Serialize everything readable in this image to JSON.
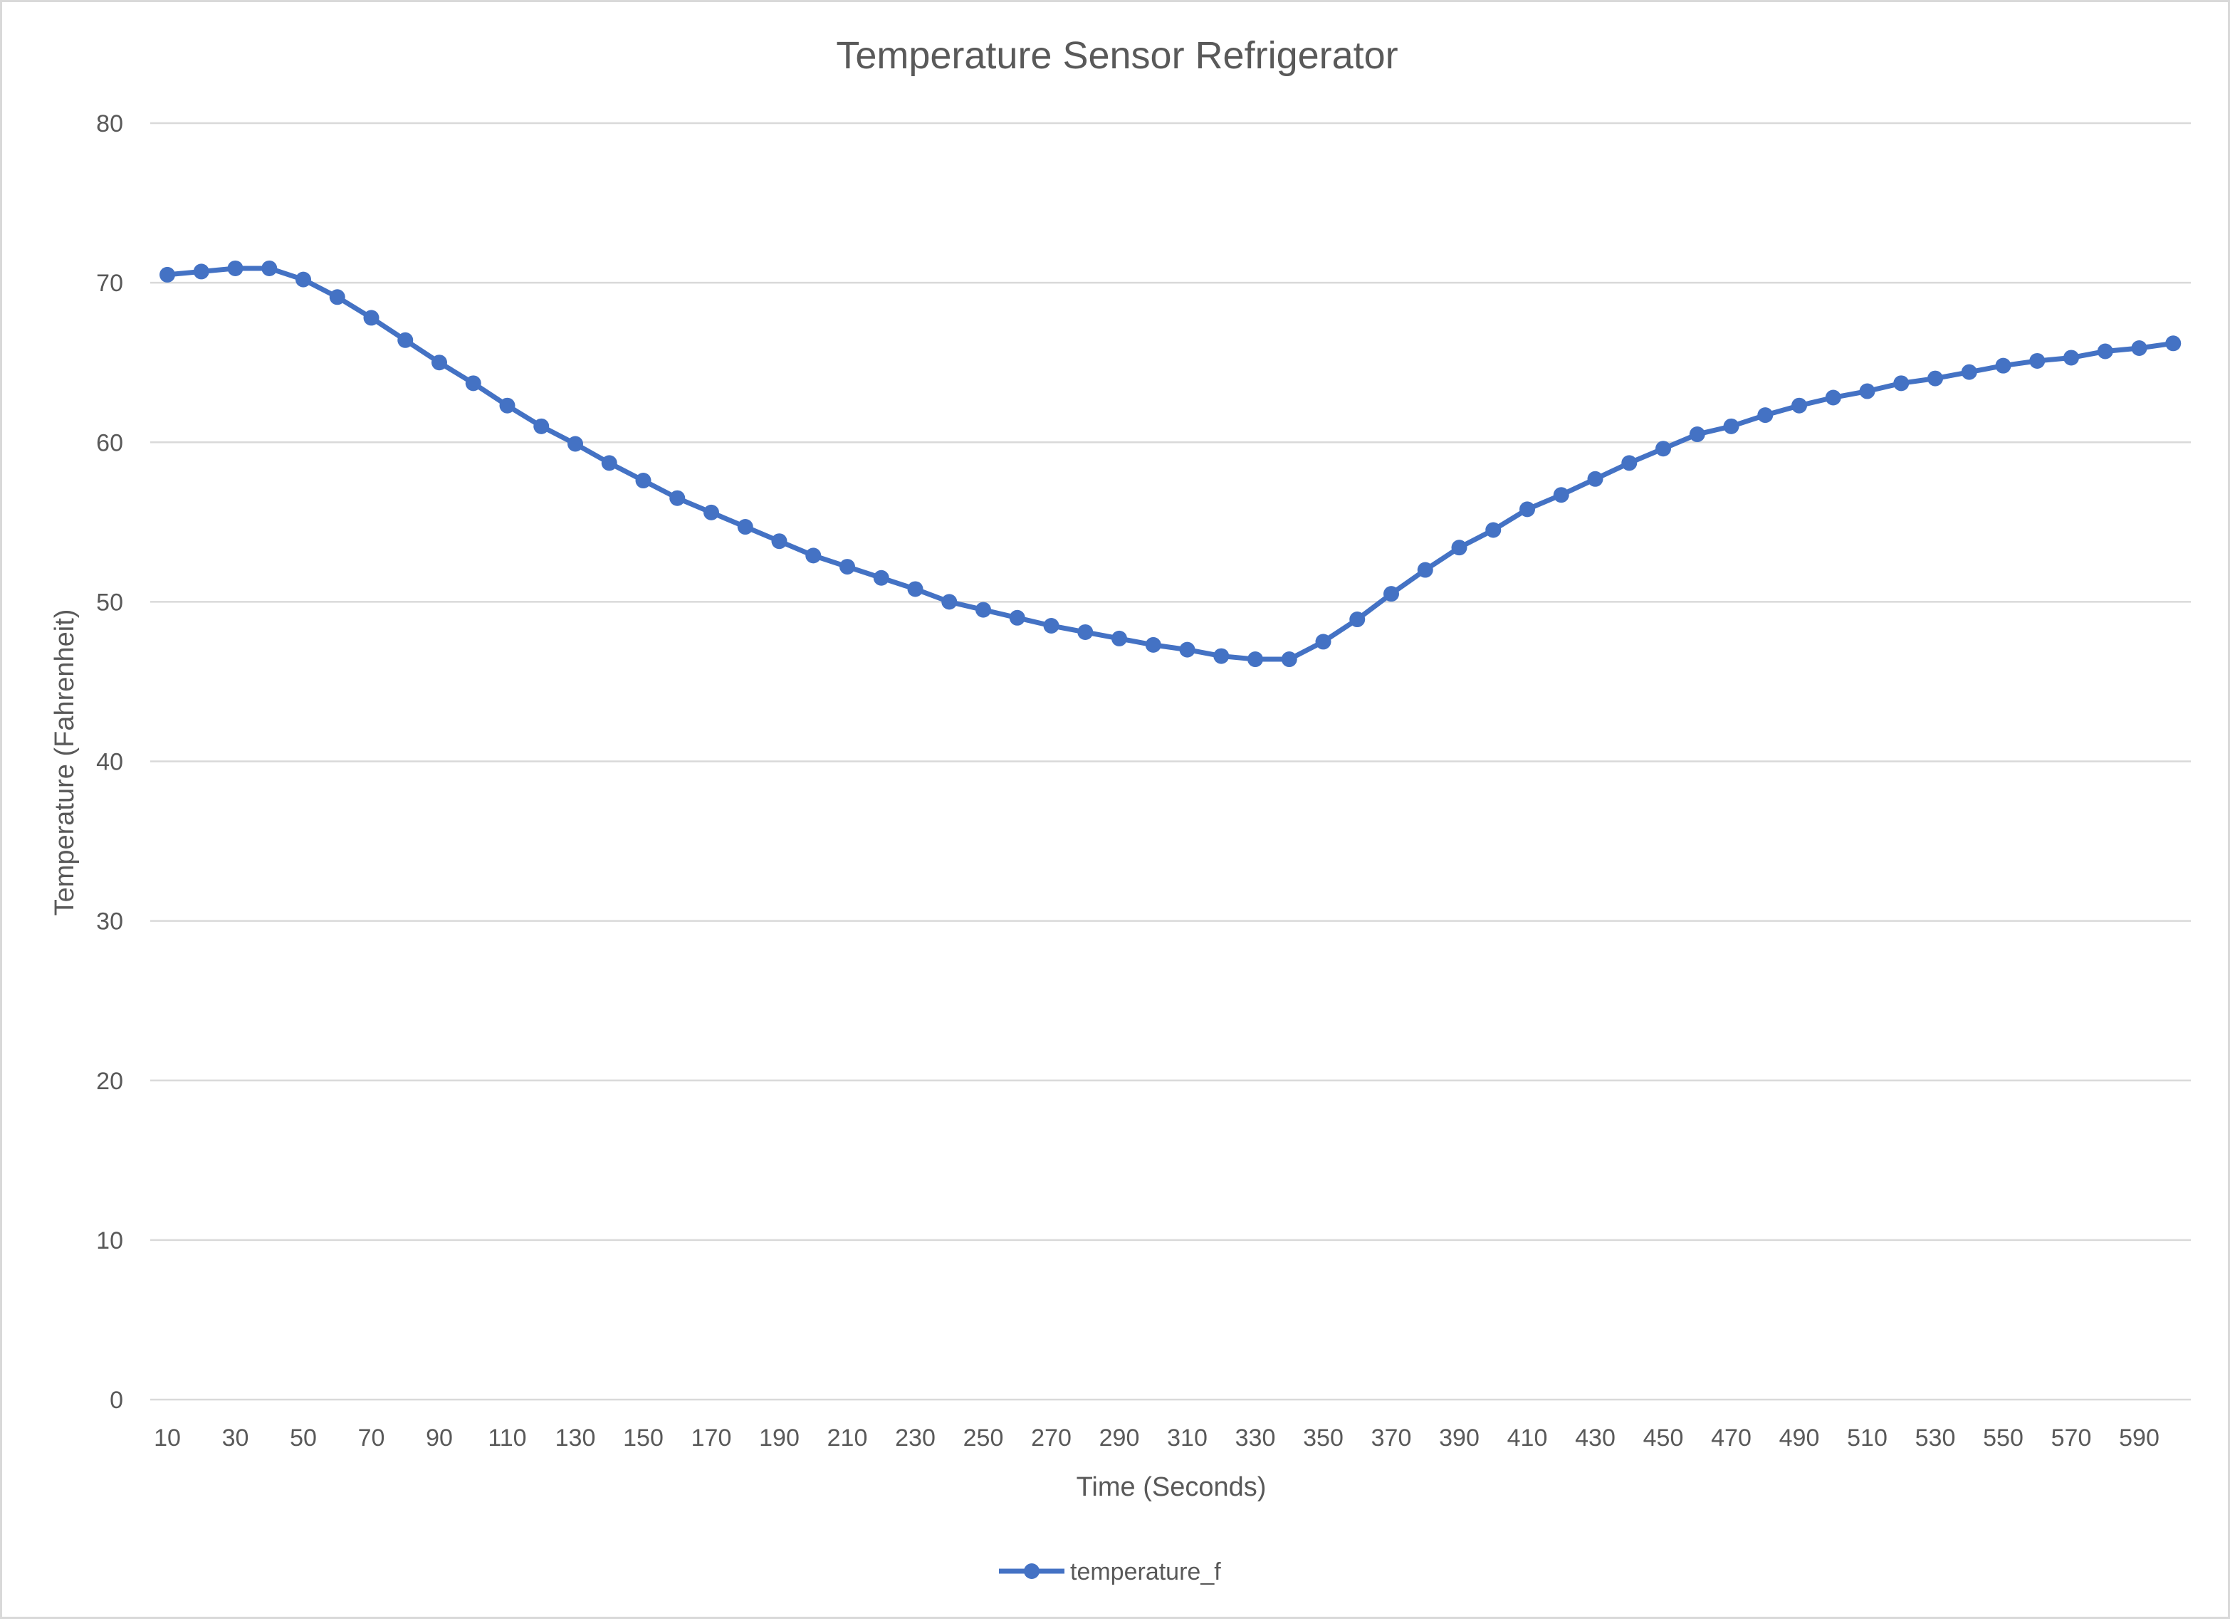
{
  "chart_data": {
    "type": "line",
    "title": "Temperature Sensor Refrigerator",
    "xlabel": "Time (Seconds)",
    "ylabel": "Temperature (Fahrenheit)",
    "ylim": [
      0,
      80
    ],
    "yticks": [
      "0",
      "10",
      "20",
      "30",
      "40",
      "50",
      "60",
      "70",
      "80"
    ],
    "grid": true,
    "legend_position": "bottom",
    "x": [
      10,
      20,
      30,
      40,
      50,
      60,
      70,
      80,
      90,
      100,
      110,
      120,
      130,
      140,
      150,
      160,
      170,
      180,
      190,
      200,
      210,
      220,
      230,
      240,
      250,
      260,
      270,
      280,
      290,
      300,
      310,
      320,
      330,
      340,
      350,
      360,
      370,
      380,
      390,
      400,
      410,
      420,
      430,
      440,
      450,
      460,
      470,
      480,
      490,
      500,
      510,
      520,
      530,
      540,
      550,
      560,
      570,
      580,
      590,
      600
    ],
    "xtick_labels": [
      "10",
      "30",
      "50",
      "70",
      "90",
      "110",
      "130",
      "150",
      "170",
      "190",
      "210",
      "230",
      "250",
      "270",
      "290",
      "310",
      "330",
      "350",
      "370",
      "390",
      "410",
      "430",
      "450",
      "470",
      "490",
      "510",
      "530",
      "550",
      "570",
      "590"
    ],
    "series": [
      {
        "name": "temperature_f",
        "color": "#4472c4",
        "values": [
          70.5,
          70.7,
          70.9,
          70.9,
          70.2,
          69.1,
          67.8,
          66.4,
          65.0,
          63.7,
          62.3,
          61.0,
          59.9,
          58.7,
          57.6,
          56.5,
          55.6,
          54.7,
          53.8,
          52.9,
          52.2,
          51.5,
          50.8,
          50.0,
          49.5,
          49.0,
          48.5,
          48.1,
          47.7,
          47.3,
          47.0,
          46.6,
          46.4,
          46.4,
          47.5,
          48.9,
          50.5,
          52.0,
          53.4,
          54.5,
          55.8,
          56.7,
          57.7,
          58.7,
          59.6,
          60.5,
          61.0,
          61.7,
          62.3,
          62.8,
          63.2,
          63.7,
          64.0,
          64.4,
          64.8,
          65.1,
          65.3,
          65.7,
          65.9,
          66.2
        ]
      }
    ]
  }
}
